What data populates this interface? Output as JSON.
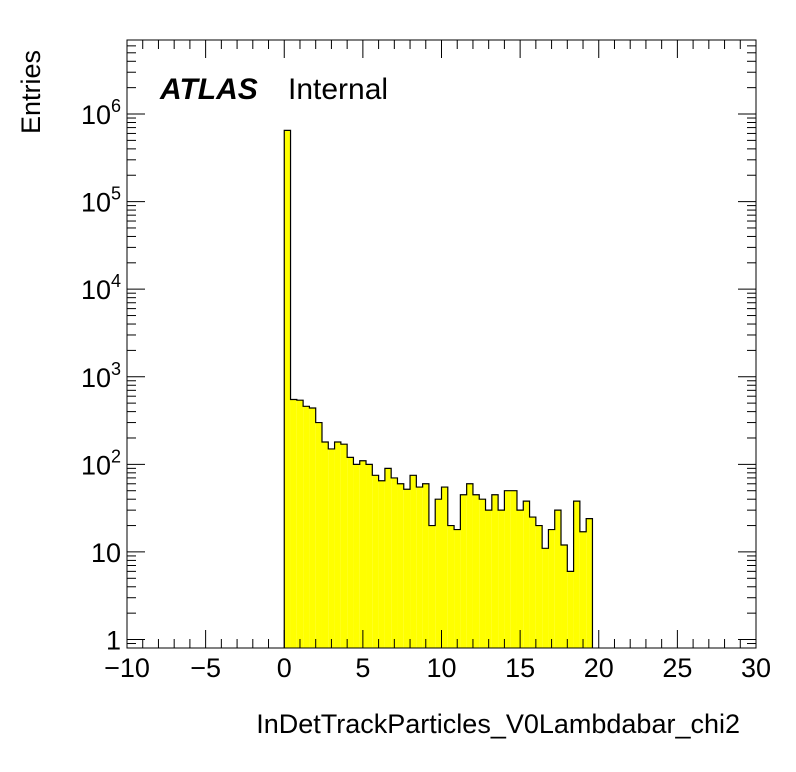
{
  "atlas_label": {
    "brand": "ATLAS",
    "status": "Internal"
  },
  "colors": {
    "fill": "#ffff00",
    "line": "#000000"
  },
  "chart_data": {
    "type": "bar",
    "histogram": true,
    "xlabel": "InDetTrackParticles_V0Lambdabar_chi2",
    "ylabel": "Entries",
    "xlim": [
      -10,
      30
    ],
    "ylim": [
      0.8,
      7000000
    ],
    "log_y": true,
    "grid": false,
    "x_ticks": [
      -10,
      -5,
      0,
      5,
      10,
      15,
      20,
      25,
      30
    ],
    "x_tick_labels": [
      "−10",
      "−5",
      "0",
      "5",
      "10",
      "15",
      "20",
      "25",
      "30"
    ],
    "y_ticks": [
      1,
      10,
      100,
      1000,
      10000,
      100000,
      1000000
    ],
    "y_tick_labels": [
      {
        "base": "1",
        "exp": ""
      },
      {
        "base": "10",
        "exp": ""
      },
      {
        "base": "10",
        "exp": "2"
      },
      {
        "base": "10",
        "exp": "3"
      },
      {
        "base": "10",
        "exp": "4"
      },
      {
        "base": "10",
        "exp": "5"
      },
      {
        "base": "10",
        "exp": "6"
      }
    ],
    "bin_width": 0.4,
    "bin_edges_start": 0,
    "values": [
      650000,
      550,
      540,
      460,
      440,
      300,
      180,
      150,
      180,
      170,
      120,
      100,
      110,
      100,
      75,
      65,
      90,
      70,
      60,
      52,
      75,
      55,
      60,
      20,
      40,
      55,
      20,
      18,
      45,
      60,
      45,
      40,
      30,
      45,
      30,
      50,
      50,
      30,
      38,
      25,
      20,
      11,
      18,
      30,
      12,
      6,
      38,
      17,
      24
    ]
  }
}
